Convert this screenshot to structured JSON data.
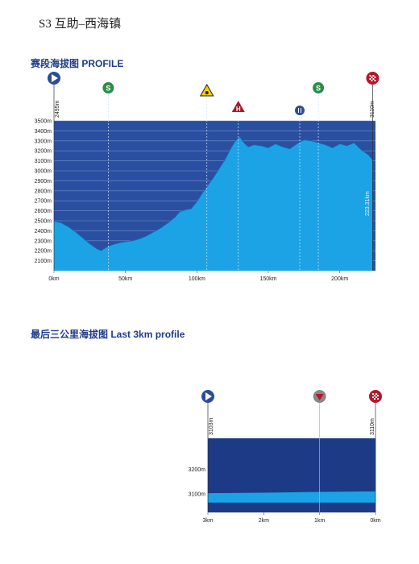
{
  "page": {
    "stage_title": "S3 互助–西海镇",
    "section1_title": "赛段海拔图  PROFILE",
    "section2_title": "最后三公里海拔图  Last 3km profile"
  },
  "colors": {
    "sky": "#2b4fa0",
    "sky_dark": "#1c3a86",
    "terrain": "#1ba3e6",
    "title_blue": "#1f3b8a",
    "start_icon": "#2c4c9a",
    "sprint_icon": "#2d8c4a",
    "finish_icon": "#b5162a",
    "kom_icon": "#a5192c",
    "caution_icon": "#f2cf10",
    "feed_icon": "#2c4c9a",
    "km_icon": "#b5162a"
  },
  "chart_data": [
    {
      "type": "area",
      "title": "赛段海拔图  PROFILE",
      "x_unit": "km",
      "y_unit": "m",
      "xlim": [
        0,
        225
      ],
      "ylim": [
        2000,
        3500
      ],
      "xticks": [
        "0km",
        "50km",
        "100km",
        "150km",
        "200km"
      ],
      "xtick_values": [
        0,
        50,
        100,
        150,
        200
      ],
      "yticks": [
        "2100m",
        "2200m",
        "2300m",
        "2400m",
        "2500m",
        "2600m",
        "2700m",
        "2800m",
        "2900m",
        "3000m",
        "3100m",
        "3200m",
        "3300m",
        "3400m",
        "3500m"
      ],
      "ytick_values": [
        2100,
        2200,
        2300,
        2400,
        2500,
        2600,
        2700,
        2800,
        2900,
        3000,
        3100,
        3200,
        3300,
        3400,
        3500
      ],
      "start_label": "2495m",
      "finish_label": "3110m",
      "distance_label": "223.31km",
      "x": [
        0,
        5,
        10,
        15,
        20,
        25,
        30,
        33,
        35,
        38,
        42,
        46,
        50,
        55,
        60,
        65,
        70,
        75,
        80,
        85,
        88,
        92,
        96,
        100,
        104,
        108,
        112,
        116,
        120,
        124,
        127,
        130,
        133,
        136,
        140,
        145,
        150,
        155,
        160,
        165,
        170,
        175,
        180,
        185,
        190,
        195,
        200,
        205,
        210,
        215,
        220,
        223
      ],
      "values": [
        2495,
        2480,
        2440,
        2390,
        2330,
        2270,
        2220,
        2200,
        2220,
        2245,
        2265,
        2280,
        2290,
        2300,
        2320,
        2350,
        2390,
        2430,
        2480,
        2540,
        2590,
        2610,
        2620,
        2690,
        2780,
        2860,
        2940,
        3030,
        3120,
        3230,
        3300,
        3340,
        3280,
        3240,
        3260,
        3250,
        3230,
        3270,
        3240,
        3220,
        3270,
        3310,
        3300,
        3280,
        3260,
        3230,
        3270,
        3250,
        3280,
        3210,
        3160,
        3110
      ],
      "annotations": [
        {
          "x": 0,
          "icon": "start"
        },
        {
          "x": 38,
          "icon": "sprint"
        },
        {
          "x": 107,
          "icon": "caution"
        },
        {
          "x": 129,
          "icon": "kom"
        },
        {
          "x": 172,
          "icon": "feed"
        },
        {
          "x": 185,
          "icon": "sprint"
        },
        {
          "x": 223,
          "icon": "finish"
        }
      ]
    },
    {
      "type": "area",
      "title": "最后三公里海拔图  Last 3km profile",
      "x_unit": "km",
      "y_unit": "m",
      "xlim": [
        3,
        0
      ],
      "ylim": [
        3025,
        3325
      ],
      "xticks": [
        "3km",
        "2km",
        "1km",
        "0km"
      ],
      "xtick_values": [
        3,
        2,
        1,
        0
      ],
      "yticks": [
        "3100m",
        "3200m"
      ],
      "ytick_values": [
        3100,
        3200
      ],
      "start_label": "3103m",
      "finish_label": "3110m",
      "x": [
        3,
        2,
        1,
        0
      ],
      "values": [
        3103,
        3105,
        3108,
        3110
      ],
      "annotations": [
        {
          "x": 3,
          "icon": "start"
        },
        {
          "x": 1,
          "icon": "last_km"
        },
        {
          "x": 0,
          "icon": "finish"
        }
      ]
    }
  ]
}
